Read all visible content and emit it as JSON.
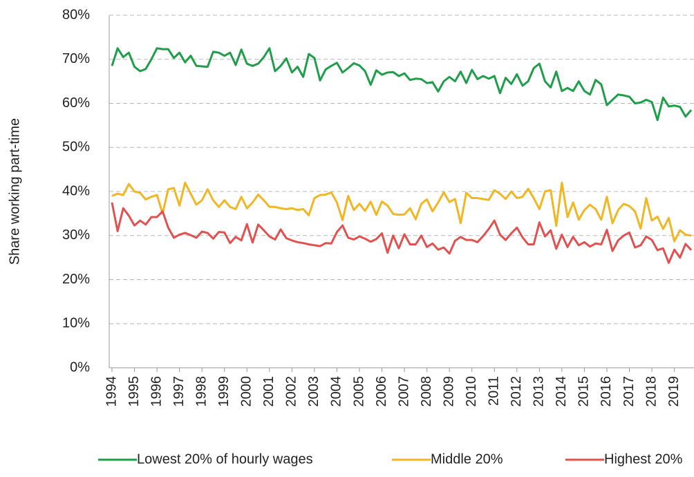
{
  "chart_data": {
    "type": "line",
    "y_label": "Share working part-time",
    "categories": [
      "1994",
      null,
      null,
      null,
      "1995",
      null,
      null,
      null,
      "1996",
      null,
      null,
      null,
      "1997",
      null,
      null,
      null,
      "1998",
      null,
      null,
      null,
      "1999",
      null,
      null,
      null,
      "2000",
      null,
      null,
      null,
      "2001",
      null,
      null,
      null,
      "2002",
      null,
      null,
      null,
      "2003",
      null,
      null,
      null,
      "2004",
      null,
      null,
      null,
      "2005",
      null,
      null,
      null,
      "2006",
      null,
      null,
      null,
      "2007",
      null,
      null,
      null,
      "2008",
      null,
      null,
      null,
      "2009",
      null,
      null,
      null,
      "2010",
      null,
      null,
      null,
      "2011",
      null,
      null,
      null,
      "2012",
      null,
      null,
      null,
      "2013",
      null,
      null,
      null,
      "2014",
      null,
      null,
      null,
      "2015",
      null,
      null,
      null,
      "2016",
      null,
      null,
      null,
      "2017",
      null,
      null,
      null,
      "2018",
      null,
      null,
      null,
      "2019",
      null,
      null,
      null
    ],
    "series": [
      {
        "name": "Lowest 20% of hourly wages",
        "color": "#1f9e4a",
        "values": [
          68.5,
          72.5,
          70.5,
          71.5,
          68.3,
          67.3,
          67.8,
          70,
          72.5,
          72.3,
          72.3,
          70.3,
          71.5,
          69.3,
          70.8,
          68.5,
          68.4,
          68.3,
          71.7,
          71.5,
          70.8,
          71.5,
          68.7,
          72.2,
          69,
          68.5,
          69,
          70.5,
          72.5,
          67.3,
          68.5,
          70.2,
          67,
          68.3,
          66,
          71.2,
          70.3,
          65.2,
          67.7,
          68.5,
          69.2,
          67,
          68,
          69.1,
          68.6,
          67.3,
          64.2,
          67.5,
          66.5,
          67,
          67.1,
          66.2,
          66.8,
          65.3,
          65.6,
          65.5,
          64.6,
          64.8,
          62.7,
          65,
          66,
          65,
          67.2,
          64.6,
          67.6,
          65.5,
          66.2,
          65.6,
          66.2,
          62.3,
          65.8,
          64.4,
          66.6,
          64,
          65,
          68,
          69,
          65,
          63.6,
          67.2,
          62.8,
          63.5,
          62.8,
          65,
          62.8,
          62,
          65.3,
          64.3,
          59.6,
          60.8,
          62,
          61.8,
          61.5,
          60,
          60.2,
          60.8,
          60.3,
          56.2,
          61.3,
          59.3,
          59.5,
          59.2,
          57,
          58.5
        ]
      },
      {
        "name": "Middle 20%",
        "color": "#f0b623",
        "values": [
          39,
          39.5,
          39.2,
          41.7,
          40,
          39.7,
          38.2,
          38.8,
          39.2,
          35,
          40.5,
          40.8,
          36.8,
          42,
          39.5,
          37,
          38,
          40.5,
          38,
          36.5,
          38,
          36.5,
          36,
          38.8,
          36.2,
          37.5,
          39.3,
          38,
          36.5,
          36.5,
          36.2,
          36,
          36.2,
          35.8,
          36,
          34.6,
          38.5,
          39.2,
          39.3,
          39.8,
          37.5,
          33.5,
          39,
          35.8,
          37.2,
          35.6,
          37.7,
          34.7,
          37.7,
          36.8,
          34.9,
          34.7,
          34.8,
          36.2,
          33.7,
          37.2,
          38.2,
          35.5,
          37.5,
          39.8,
          37.6,
          38.3,
          32.8,
          39.7,
          38.5,
          38.5,
          38.3,
          38.1,
          40.3,
          39.5,
          38.3,
          40,
          38.5,
          38.8,
          40.6,
          38.5,
          36,
          40,
          40.3,
          32.2,
          42,
          34.2,
          37.5,
          33.6,
          35.8,
          37,
          36,
          33.6,
          38.8,
          32.8,
          35.8,
          37.2,
          36.7,
          35.5,
          31.6,
          38.5,
          33.4,
          34.3,
          31.5,
          34,
          28.7,
          31.2,
          30.2,
          30
        ]
      },
      {
        "name": "Highest 20%",
        "color": "#e0514f",
        "values": [
          37.5,
          31,
          36.2,
          34.5,
          32.3,
          33.4,
          32.5,
          34.2,
          34.2,
          35.5,
          31.8,
          29.5,
          30.2,
          30.6,
          30.1,
          29.5,
          30.9,
          30.6,
          29.3,
          30.8,
          30.7,
          28.3,
          29.7,
          28.9,
          32.6,
          28.4,
          32.5,
          31.2,
          29.8,
          29.1,
          31.4,
          29.4,
          28.9,
          28.5,
          28.3,
          28,
          27.8,
          27.6,
          28.3,
          28.2,
          30.8,
          32.3,
          29.5,
          29.1,
          29.8,
          29.3,
          28.6,
          29.2,
          30.5,
          26.1,
          30,
          27.1,
          30.3,
          28,
          28,
          30,
          27.4,
          28.2,
          26.8,
          27.3,
          25.9,
          28.8,
          29.7,
          29,
          29,
          28.5,
          29.9,
          31.5,
          33.4,
          30.2,
          29,
          30.5,
          31.8,
          29.6,
          28,
          28,
          33,
          29.8,
          31.2,
          27,
          30.2,
          27.4,
          29.7,
          27.8,
          28.5,
          27.5,
          28.2,
          28,
          31.3,
          26.5,
          28.9,
          30,
          30.7,
          27.3,
          27.8,
          29.8,
          29,
          26.7,
          27.1,
          23.8,
          26.8,
          25,
          28.1,
          26.7
        ]
      }
    ],
    "ylim": [
      0,
      80
    ],
    "yticks": [
      {
        "value": 0,
        "label": "0%"
      },
      {
        "value": 10,
        "label": "10%"
      },
      {
        "value": 20,
        "label": "20%"
      },
      {
        "value": 30,
        "label": "30%"
      },
      {
        "value": 40,
        "label": "40%"
      },
      {
        "value": 50,
        "label": "50%"
      },
      {
        "value": 60,
        "label": "60%"
      },
      {
        "value": 70,
        "label": "70%"
      },
      {
        "value": 80,
        "label": "80%"
      }
    ],
    "grid": true,
    "legend": "bottom"
  }
}
